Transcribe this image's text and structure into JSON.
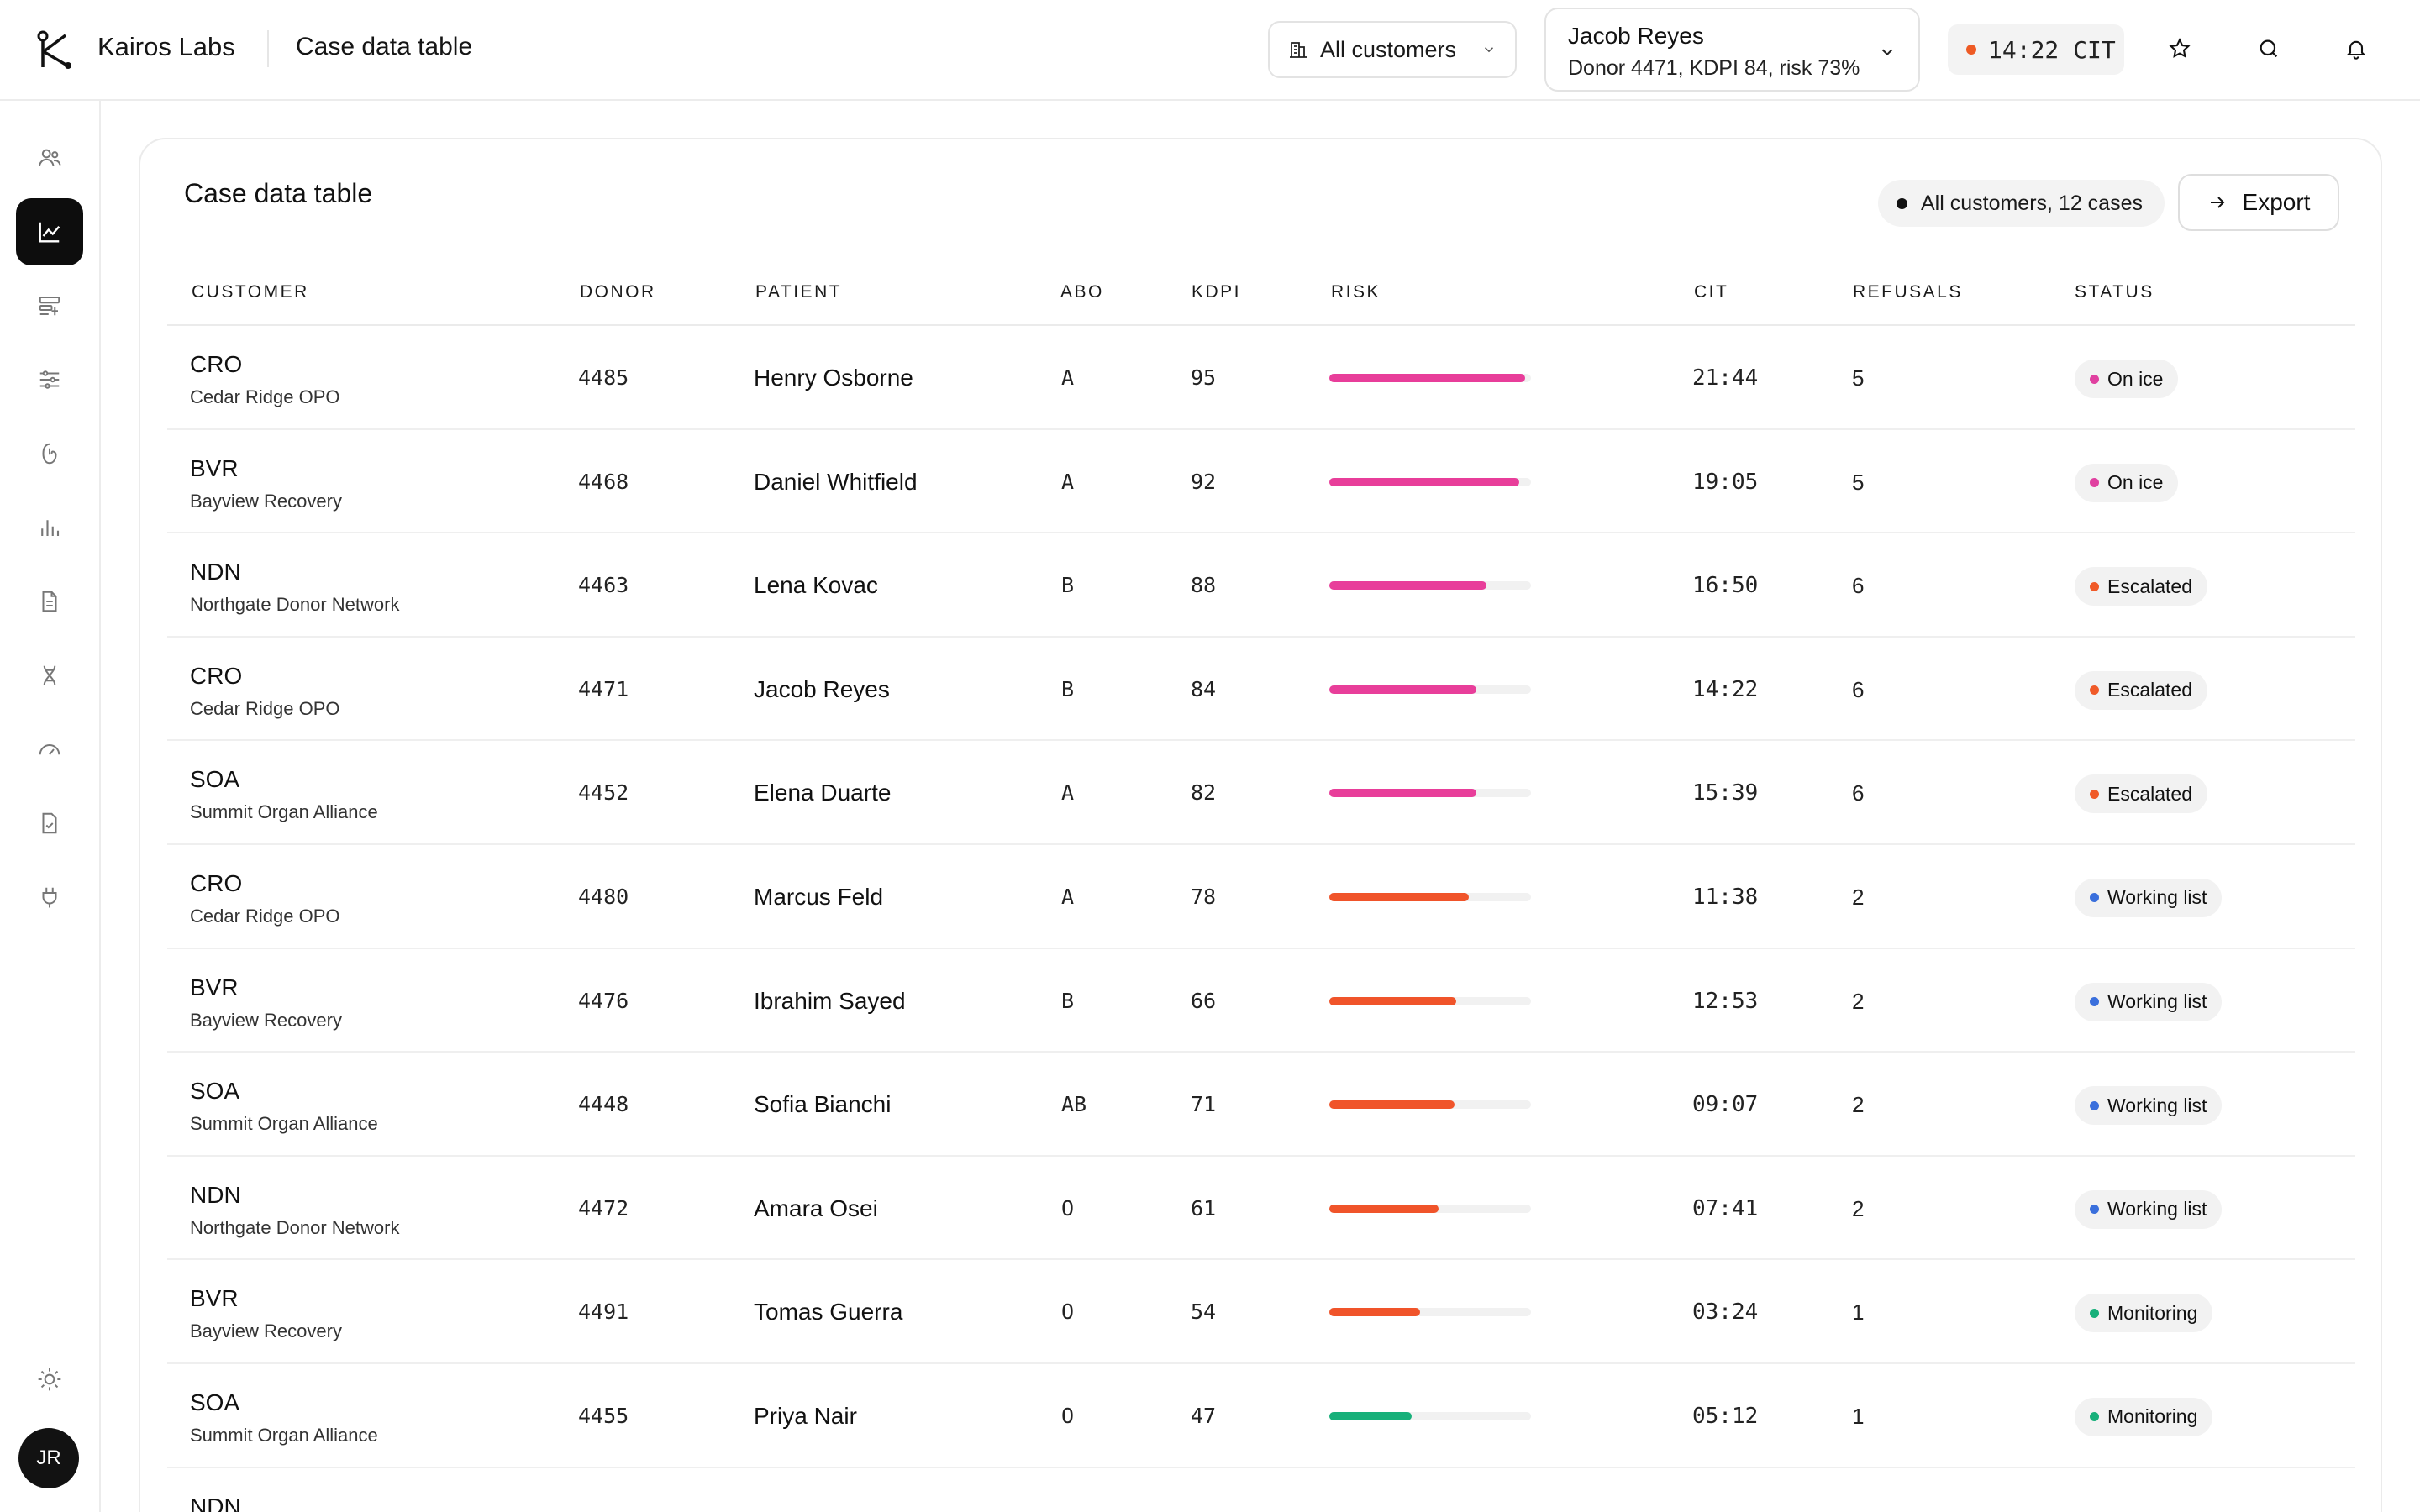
{
  "app": {
    "brand": "Kairos Labs",
    "page_title": "Case data table"
  },
  "header": {
    "customer_filter": "All customers",
    "case_selector": {
      "name": "Jacob Reyes",
      "details": "Donor 4471, KDPI 84, risk 73%"
    },
    "timer": "14:22 CIT",
    "timer_color": "#ee5a24"
  },
  "sidebar": {
    "items": [
      "users-icon",
      "chart-line-icon",
      "layout-icon",
      "sliders-icon",
      "kidney-icon",
      "bar-chart-icon",
      "document-icon",
      "dna-icon",
      "gauge-icon",
      "checklist-icon",
      "plug-icon"
    ],
    "active_index": 1,
    "footer_icon": "sun-icon",
    "avatar_initials": "JR"
  },
  "card": {
    "title": "Case data table",
    "summary": "All customers, 12 cases",
    "export_label": "Export"
  },
  "table": {
    "columns": [
      "CUSTOMER",
      "DONOR",
      "PATIENT",
      "ABO",
      "KDPI",
      "RISK",
      "CIT",
      "REFUSALS",
      "STATUS"
    ],
    "rows": [
      {
        "code": "CRO",
        "customer": "Cedar Ridge OPO",
        "donor": "4485",
        "patient": "Henry Osborne",
        "abo": "A",
        "kdpi": "95",
        "risk": 0.97,
        "risk_color": "#e83e9a",
        "cit": "21:44",
        "refusals": "5",
        "status": "On ice",
        "status_color": "#e040a0"
      },
      {
        "code": "BVR",
        "customer": "Bayview Recovery",
        "donor": "4468",
        "patient": "Daniel Whitfield",
        "abo": "A",
        "kdpi": "92",
        "risk": 0.94,
        "risk_color": "#e83e9a",
        "cit": "19:05",
        "refusals": "5",
        "status": "On ice",
        "status_color": "#e040a0"
      },
      {
        "code": "NDN",
        "customer": "Northgate Donor Network",
        "donor": "4463",
        "patient": "Lena Kovac",
        "abo": "B",
        "kdpi": "88",
        "risk": 0.78,
        "risk_color": "#e83e9a",
        "cit": "16:50",
        "refusals": "6",
        "status": "Escalated",
        "status_color": "#f05a28"
      },
      {
        "code": "CRO",
        "customer": "Cedar Ridge OPO",
        "donor": "4471",
        "patient": "Jacob Reyes",
        "abo": "B",
        "kdpi": "84",
        "risk": 0.73,
        "risk_color": "#e83e9a",
        "cit": "14:22",
        "refusals": "6",
        "status": "Escalated",
        "status_color": "#f05a28"
      },
      {
        "code": "SOA",
        "customer": "Summit Organ Alliance",
        "donor": "4452",
        "patient": "Elena Duarte",
        "abo": "A",
        "kdpi": "82",
        "risk": 0.73,
        "risk_color": "#e83e9a",
        "cit": "15:39",
        "refusals": "6",
        "status": "Escalated",
        "status_color": "#f05a28"
      },
      {
        "code": "CRO",
        "customer": "Cedar Ridge OPO",
        "donor": "4480",
        "patient": "Marcus Feld",
        "abo": "A",
        "kdpi": "78",
        "risk": 0.69,
        "risk_color": "#f0542a",
        "cit": "11:38",
        "refusals": "2",
        "status": "Working list",
        "status_color": "#3a6fdc"
      },
      {
        "code": "BVR",
        "customer": "Bayview Recovery",
        "donor": "4476",
        "patient": "Ibrahim Sayed",
        "abo": "B",
        "kdpi": "66",
        "risk": 0.63,
        "risk_color": "#f0542a",
        "cit": "12:53",
        "refusals": "2",
        "status": "Working list",
        "status_color": "#3a6fdc"
      },
      {
        "code": "SOA",
        "customer": "Summit Organ Alliance",
        "donor": "4448",
        "patient": "Sofia Bianchi",
        "abo": "AB",
        "kdpi": "71",
        "risk": 0.62,
        "risk_color": "#f0542a",
        "cit": "09:07",
        "refusals": "2",
        "status": "Working list",
        "status_color": "#3a6fdc"
      },
      {
        "code": "NDN",
        "customer": "Northgate Donor Network",
        "donor": "4472",
        "patient": "Amara Osei",
        "abo": "O",
        "kdpi": "61",
        "risk": 0.54,
        "risk_color": "#f0542a",
        "cit": "07:41",
        "refusals": "2",
        "status": "Working list",
        "status_color": "#3a6fdc"
      },
      {
        "code": "BVR",
        "customer": "Bayview Recovery",
        "donor": "4491",
        "patient": "Tomas Guerra",
        "abo": "O",
        "kdpi": "54",
        "risk": 0.45,
        "risk_color": "#f0542a",
        "cit": "03:24",
        "refusals": "1",
        "status": "Monitoring",
        "status_color": "#17b07a"
      },
      {
        "code": "SOA",
        "customer": "Summit Organ Alliance",
        "donor": "4455",
        "patient": "Priya Nair",
        "abo": "O",
        "kdpi": "47",
        "risk": 0.41,
        "risk_color": "#17b07a",
        "cit": "05:12",
        "refusals": "1",
        "status": "Monitoring",
        "status_color": "#17b07a"
      },
      {
        "code": "NDN",
        "customer": "",
        "donor": "",
        "patient": "",
        "abo": "",
        "kdpi": "",
        "risk": 0,
        "risk_color": "#17b07a",
        "cit": "",
        "refusals": "",
        "status": "",
        "status_color": "#17b07a"
      }
    ]
  }
}
